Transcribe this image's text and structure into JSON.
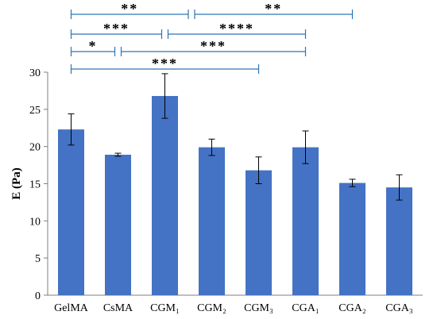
{
  "chart_data": {
    "type": "bar",
    "categories": [
      "GelMA",
      "CsMA",
      "CGM₁",
      "CGM₂",
      "CGM₃",
      "CGA₁",
      "CGA₂",
      "CGA₃"
    ],
    "values": [
      22.3,
      18.9,
      26.8,
      19.9,
      16.8,
      19.9,
      15.1,
      14.5
    ],
    "errors": [
      2.1,
      0.2,
      3.0,
      1.1,
      1.8,
      2.2,
      0.5,
      1.7
    ],
    "ylabel": "E (Pa)",
    "xlabel": "",
    "ylim": [
      0,
      30
    ],
    "yticks": [
      0,
      5,
      10,
      15,
      20,
      25,
      30
    ],
    "grid": false,
    "bar_color": "#4472C4",
    "bracket_color": "#2E75B6",
    "significance": [
      {
        "from": "GelMA",
        "to": "CGM₂",
        "label": "**",
        "row": 0,
        "split": true
      },
      {
        "from": "CGM₂",
        "to": "CGA₂",
        "label": "**",
        "row": 0,
        "split": true
      },
      {
        "from": "GelMA",
        "to": "CGM₁",
        "label": "***",
        "row": 1,
        "split": true
      },
      {
        "from": "CGM₁",
        "to": "CGA₁",
        "label": "****",
        "row": 1,
        "split": true
      },
      {
        "from": "GelMA",
        "to": "CsMA",
        "label": "*",
        "row": 2,
        "split": true
      },
      {
        "from": "CsMA",
        "to": "CGA₁",
        "label": "***",
        "row": 2,
        "split": true
      },
      {
        "from": "GelMA",
        "to": "CGM₃",
        "label": "***",
        "row": 3,
        "split": false
      }
    ]
  }
}
